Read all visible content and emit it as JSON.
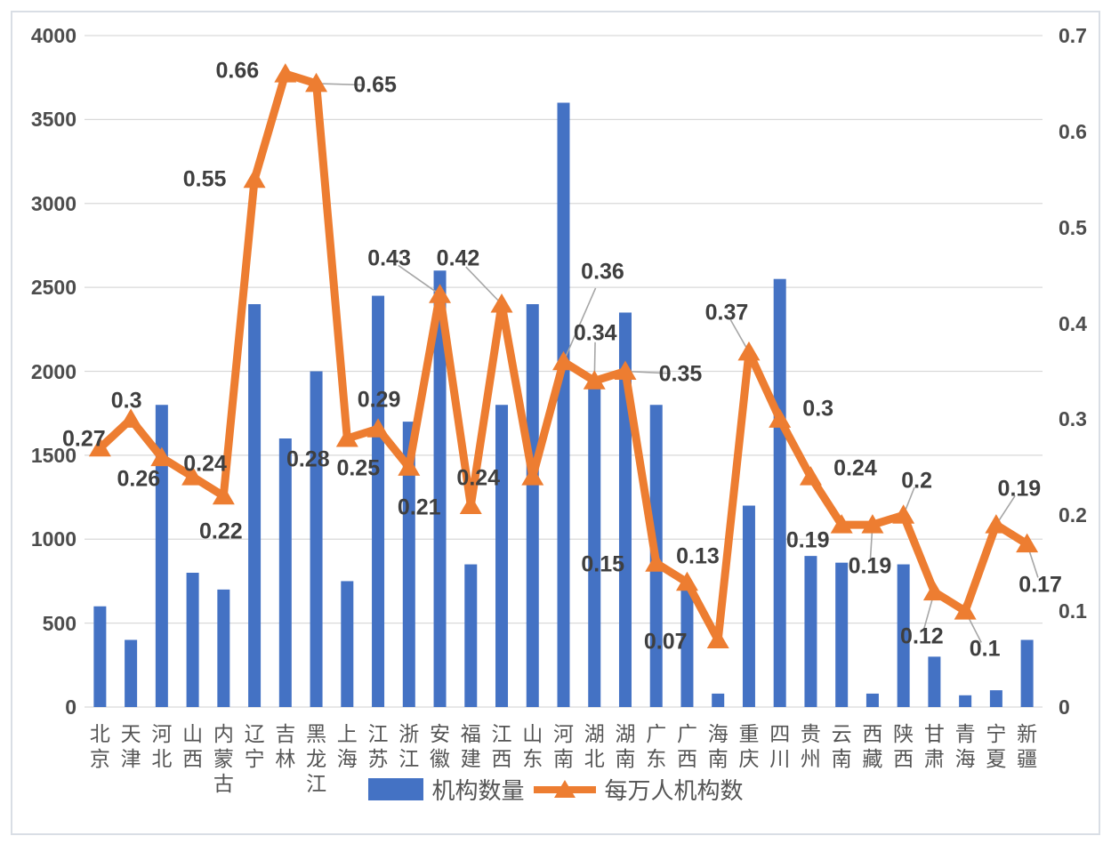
{
  "chart_data": {
    "type": "combo-bar-line",
    "categories": [
      "北京",
      "天津",
      "河北",
      "山西",
      "内蒙古",
      "辽宁",
      "吉林",
      "黑龙江",
      "上海",
      "江苏",
      "浙江",
      "安徽",
      "福建",
      "江西",
      "山东",
      "河南",
      "湖北",
      "湖南",
      "广东",
      "广西",
      "海南",
      "重庆",
      "四川",
      "贵州",
      "云南",
      "西藏",
      "陕西",
      "甘肃",
      "青海",
      "宁夏",
      "新疆"
    ],
    "series": [
      {
        "name": "机构数量",
        "type": "bar",
        "axis": "left",
        "values": [
          600,
          400,
          1800,
          800,
          700,
          2400,
          1600,
          2000,
          750,
          2450,
          1700,
          2600,
          850,
          1800,
          2400,
          3600,
          1950,
          2350,
          1800,
          700,
          80,
          1200,
          2550,
          900,
          860,
          80,
          850,
          300,
          70,
          100,
          400
        ]
      },
      {
        "name": "每万人机构数",
        "type": "line",
        "axis": "right",
        "data_labels_visible": true,
        "values": [
          0.27,
          0.3,
          0.26,
          0.24,
          0.22,
          0.55,
          0.66,
          0.65,
          0.28,
          0.29,
          0.25,
          0.43,
          0.21,
          0.42,
          0.24,
          0.36,
          0.34,
          0.35,
          0.15,
          0.13,
          0.07,
          0.37,
          0.3,
          0.24,
          0.19,
          0.19,
          0.2,
          0.12,
          0.1,
          0.19,
          0.17
        ]
      }
    ],
    "left_axis": {
      "min": 0,
      "max": 4000,
      "step": 500,
      "ticks": [
        "0",
        "500",
        "1000",
        "1500",
        "2000",
        "2500",
        "3000",
        "3500",
        "4000"
      ]
    },
    "right_axis": {
      "min": 0,
      "max": 0.7,
      "step": 0.1,
      "ticks": [
        "0",
        "0.1",
        "0.2",
        "0.3",
        "0.4",
        "0.5",
        "0.6",
        "0.7"
      ]
    },
    "grid": true,
    "legend_position": "bottom",
    "colors": {
      "bar": "#4472C4",
      "line": "#ED7D31",
      "grid": "#D9D9D9",
      "axis_text": "#4d4d4d",
      "data_label": "#3f3f3f",
      "leader": "#A6A6A6"
    }
  },
  "legend": {
    "bar_label": "机构数量",
    "line_label": "每万人机构数"
  }
}
